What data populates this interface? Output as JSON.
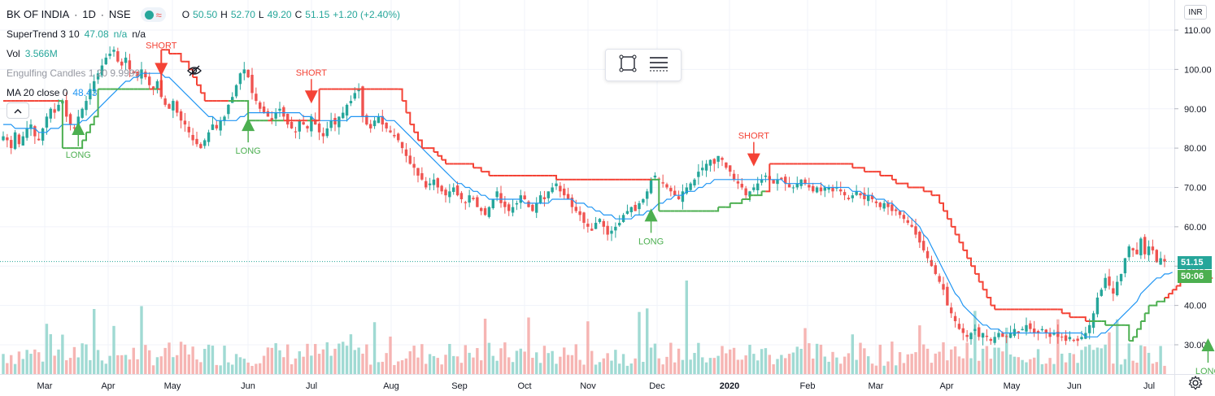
{
  "header": {
    "symbol": "BK OF INDIA",
    "interval": "1D",
    "exchange": "NSE",
    "sep1": "·",
    "sep2": "·",
    "ohlc": [
      {
        "k": "O",
        "v": "50.50"
      },
      {
        "k": "H",
        "v": "52.70"
      },
      {
        "k": "L",
        "v": "49.20"
      },
      {
        "k": "C",
        "v": "51.15"
      },
      {
        "k": "",
        "v": "+1.20 (+2.40%)"
      }
    ]
  },
  "indicators": {
    "supertrend": {
      "name": "SuperTrend 3 10",
      "value": "47.08",
      "na1": "n/a",
      "na2": "n/a"
    },
    "volume": {
      "name": "Vol",
      "value": "3.566M"
    },
    "engulfing": {
      "name": "Engulfing Candles 1 20 9.9999"
    },
    "ma": {
      "name": "MA 20 close 0",
      "value": "48.43"
    }
  },
  "currency_button": "INR",
  "last_price_label": "51.15",
  "countdown_label": "50:06",
  "colors": {
    "up": "#26a69a",
    "down": "#ef5350",
    "supertrend_up": "#4caf50",
    "supertrend_down": "#f44336",
    "ma": "#2196f3",
    "volume_up": "#8fd3cb",
    "volume_down": "#f5a8a6"
  },
  "icons": {
    "collapse": "chevron-up-icon",
    "hide": "eye-crossed-icon",
    "select_tool": "square-select-icon",
    "settings_tool": "lines-settings-icon",
    "gear": "gear-icon"
  },
  "chart_data": {
    "type": "candlestick",
    "y_axis": {
      "ticks": [
        "110.00",
        "100.00",
        "90.00",
        "80.00",
        "70.00",
        "60.00",
        "50.00",
        "40.00",
        "30.00"
      ],
      "ylim": [
        26,
        112
      ]
    },
    "x_axis": {
      "ticks": [
        "Mar",
        "Apr",
        "May",
        "Jun",
        "Jul",
        "Aug",
        "Sep",
        "Oct",
        "Nov",
        "Dec",
        "2020",
        "Feb",
        "Mar",
        "Apr",
        "May",
        "Jun",
        "Jul"
      ]
    },
    "signals": [
      {
        "label": "LONG",
        "type": "long",
        "x_index": 19,
        "price": 85
      },
      {
        "label": "SHORT",
        "type": "short",
        "x_index": 40,
        "price": 100
      },
      {
        "label": "LONG",
        "type": "long",
        "x_index": 62,
        "price": 86
      },
      {
        "label": "SHORT",
        "type": "short",
        "x_index": 78,
        "price": 93
      },
      {
        "label": "LONG",
        "type": "long",
        "x_index": 164,
        "price": 63
      },
      {
        "label": "SHORT",
        "type": "short",
        "x_index": 190,
        "price": 77
      },
      {
        "label": "LONG",
        "type": "long",
        "x_index": 305,
        "price": 30
      }
    ],
    "closes": [
      83,
      82,
      80,
      84,
      81,
      83,
      85,
      86,
      83,
      82,
      85,
      88,
      90,
      89,
      91,
      92,
      88,
      86,
      85,
      88,
      90,
      92,
      95,
      97,
      99,
      101,
      103,
      104,
      105,
      102,
      101,
      103,
      100,
      99,
      98,
      100,
      98,
      96,
      95,
      97,
      93,
      91,
      90,
      92,
      89,
      87,
      86,
      84,
      82,
      81,
      80,
      82,
      84,
      86,
      85,
      87,
      88,
      91,
      93,
      96,
      99,
      100,
      98,
      94,
      92,
      90,
      89,
      88,
      87,
      89,
      90,
      88,
      86,
      85,
      84,
      87,
      86,
      85,
      88,
      86,
      84,
      83,
      85,
      87,
      86,
      88,
      89,
      91,
      92,
      94,
      95,
      88,
      86,
      85,
      87,
      88,
      86,
      85,
      84,
      83,
      82,
      80,
      78,
      76,
      75,
      73,
      72,
      70,
      71,
      72,
      70,
      69,
      68,
      69,
      70,
      68,
      67,
      66,
      68,
      67,
      65,
      64,
      63,
      65,
      67,
      69,
      66,
      65,
      64,
      65,
      66,
      68,
      67,
      65,
      64,
      66,
      68,
      67,
      69,
      70,
      71,
      69,
      68,
      67,
      65,
      64,
      63,
      61,
      60,
      59,
      61,
      62,
      60,
      58,
      59,
      60,
      61,
      63,
      64,
      65,
      64,
      66,
      67,
      69,
      72,
      73,
      72,
      71,
      70,
      69,
      68,
      67,
      69,
      70,
      71,
      72,
      74,
      75,
      76,
      77,
      76,
      78,
      77,
      75,
      74,
      72,
      71,
      70,
      68,
      69,
      70,
      71,
      72,
      73,
      72,
      71,
      72,
      72,
      71,
      70,
      70,
      71,
      72,
      71,
      70,
      69,
      70,
      69,
      70,
      70,
      69,
      70,
      69,
      68,
      67,
      68,
      69,
      68,
      67,
      68,
      67,
      66,
      65,
      66,
      65,
      64,
      64,
      63,
      62,
      61,
      60,
      58,
      56,
      54,
      52,
      50,
      48,
      46,
      44,
      40,
      38,
      36,
      34,
      33,
      32,
      33,
      34,
      32,
      33,
      32,
      31,
      32,
      33,
      32,
      32,
      33,
      34,
      33,
      34,
      35,
      34,
      33,
      33,
      34,
      33,
      32,
      33,
      32,
      32,
      31,
      32,
      31,
      31,
      32,
      33,
      35,
      38,
      42,
      44,
      47,
      45,
      43,
      46,
      48,
      52,
      55,
      54,
      53,
      57,
      53,
      55,
      54,
      51,
      52,
      51.15
    ],
    "ma20": [
      86,
      86,
      86,
      85,
      85,
      85,
      85,
      85,
      85,
      84,
      84,
      84,
      85,
      85,
      85,
      86,
      86,
      86,
      86,
      86,
      87,
      87,
      88,
      89,
      90,
      91,
      92,
      93,
      94,
      95,
      96,
      97,
      97,
      98,
      98,
      99,
      99,
      99,
      99,
      99,
      99,
      98,
      98,
      97,
      96,
      95,
      94,
      93,
      92,
      91,
      90,
      89,
      88,
      88,
      87,
      87,
      87,
      87,
      87,
      87,
      88,
      88,
      89,
      89,
      89,
      89,
      89,
      89,
      89,
      89,
      89,
      89,
      89,
      89,
      89,
      89,
      88,
      88,
      88,
      87,
      87,
      87,
      87,
      87,
      87,
      87,
      87,
      87,
      88,
      88,
      88,
      88,
      88,
      88,
      88,
      88,
      88,
      87,
      87,
      87,
      86,
      85,
      84,
      83,
      82,
      81,
      80,
      79,
      78,
      77,
      76,
      75,
      74,
      73,
      72,
      71,
      71,
      70,
      70,
      69,
      69,
      68,
      68,
      67,
      67,
      67,
      67,
      67,
      67,
      67,
      67,
      67,
      66,
      66,
      66,
      66,
      66,
      66,
      66,
      67,
      67,
      67,
      67,
      67,
      67,
      66,
      66,
      66,
      65,
      65,
      64,
      64,
      63,
      63,
      63,
      62,
      62,
      62,
      62,
      62,
      63,
      63,
      63,
      64,
      64,
      65,
      66,
      66,
      67,
      67,
      68,
      68,
      68,
      69,
      69,
      69,
      70,
      70,
      71,
      71,
      72,
      72,
      72,
      72,
      72,
      72,
      72,
      72,
      72,
      72,
      72,
      72,
      72,
      72,
      72,
      72,
      72,
      72,
      71,
      71,
      71,
      71,
      71,
      71,
      71,
      71,
      71,
      71,
      70,
      70,
      70,
      70,
      70,
      70,
      70,
      69,
      69,
      69,
      68,
      68,
      68,
      67,
      67,
      67,
      66,
      66,
      65,
      64,
      64,
      63,
      62,
      61,
      60,
      58,
      57,
      55,
      53,
      51,
      49,
      47,
      45,
      43,
      42,
      40,
      39,
      38,
      37,
      36,
      35,
      35,
      34,
      34,
      34,
      33,
      33,
      33,
      33,
      33,
      33,
      33,
      33,
      33,
      33,
      33,
      33,
      33,
      33,
      33,
      33,
      33,
      33,
      33,
      33,
      33,
      32,
      32,
      32,
      32,
      33,
      33,
      34,
      35,
      36,
      37,
      38,
      39,
      40,
      41,
      43,
      44,
      45,
      46,
      47,
      47,
      48,
      48,
      48.43
    ],
    "supertrend": [
      92,
      92,
      92,
      92,
      92,
      92,
      92,
      92,
      92,
      92,
      92,
      92,
      92,
      92,
      92,
      80,
      80,
      80,
      80,
      80,
      82,
      84,
      86,
      88,
      95,
      95,
      95,
      95,
      95,
      95,
      95,
      95,
      95,
      95,
      95,
      95,
      95,
      95,
      95,
      95,
      105,
      105,
      104,
      104,
      104,
      102,
      102,
      100,
      98,
      96,
      94,
      92,
      92,
      92,
      92,
      92,
      92,
      92,
      92,
      92,
      92,
      92,
      87,
      87,
      87,
      87,
      87,
      87,
      87,
      87,
      87,
      87,
      87,
      87,
      87,
      87,
      87,
      87,
      87,
      87,
      95,
      95,
      95,
      95,
      95,
      95,
      95,
      95,
      95,
      95,
      95,
      95,
      95,
      95,
      95,
      95,
      95,
      95,
      95,
      95,
      95,
      92,
      89,
      86,
      84,
      82,
      80,
      80,
      80,
      79,
      78,
      77,
      76,
      76,
      76,
      76,
      76,
      76,
      76,
      75,
      75,
      74,
      74,
      73,
      73,
      73,
      73,
      73,
      73,
      73,
      73,
      73,
      73,
      73,
      73,
      73,
      73,
      73,
      73,
      73,
      72,
      72,
      72,
      72,
      72,
      72,
      72,
      72,
      72,
      72,
      72,
      72,
      72,
      72,
      72,
      72,
      72,
      72,
      72,
      72,
      72,
      72,
      72,
      72,
      72,
      72,
      64,
      64,
      64,
      64,
      64,
      64,
      64,
      64,
      64,
      64,
      64,
      64,
      64,
      64,
      64,
      65,
      65,
      65,
      66,
      66,
      66,
      67,
      67,
      68,
      68,
      68,
      69,
      69,
      76,
      76,
      76,
      76,
      76,
      76,
      76,
      76,
      76,
      76,
      76,
      76,
      76,
      76,
      76,
      76,
      76,
      76,
      76,
      76,
      76,
      75,
      75,
      75,
      74,
      74,
      74,
      74,
      73,
      73,
      73,
      72,
      71,
      71,
      71,
      70,
      70,
      70,
      70,
      69,
      69,
      68,
      68,
      66,
      64,
      62,
      60,
      58,
      56,
      54,
      52,
      50,
      48,
      46,
      44,
      42,
      40,
      39,
      39,
      39,
      39,
      39,
      39,
      39,
      39,
      39,
      39,
      39,
      39,
      39,
      39,
      39,
      39,
      39,
      38,
      38,
      37,
      37,
      37,
      37,
      36,
      36,
      36,
      36,
      36,
      35,
      35,
      35,
      35,
      35,
      35,
      31,
      32,
      34,
      36,
      38,
      40,
      40,
      41,
      41,
      42,
      43,
      44,
      45,
      46,
      46,
      47,
      47,
      47,
      47,
      47,
      47,
      47.08
    ],
    "supertrend_dir": "computed: up when close above band"
  }
}
